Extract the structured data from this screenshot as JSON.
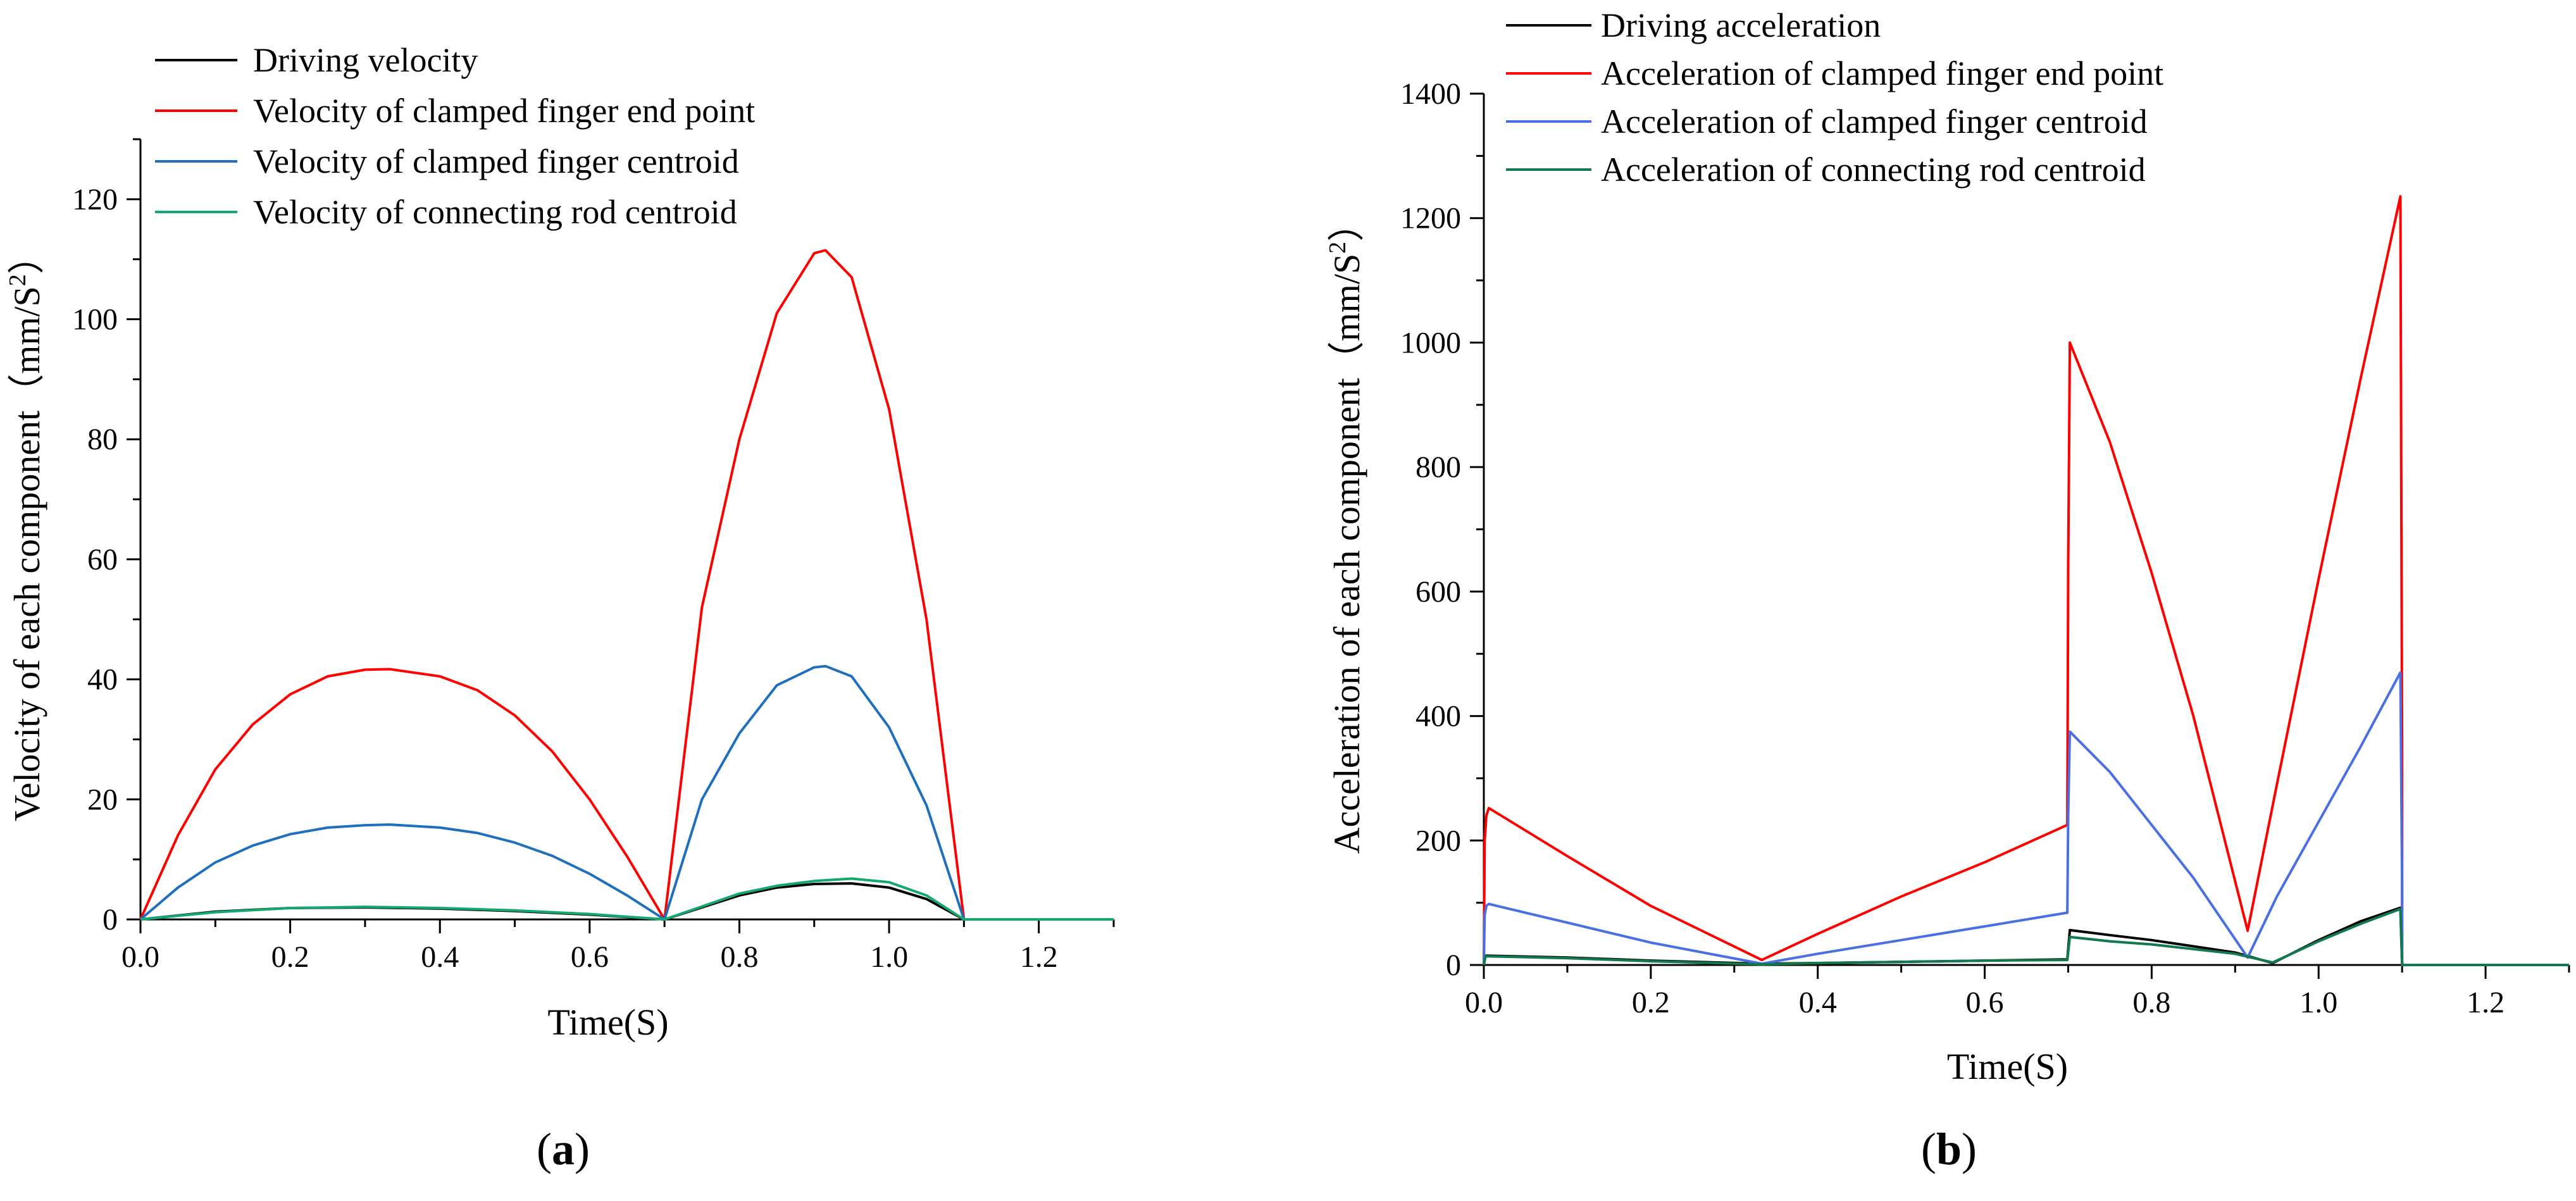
{
  "chart_data": [
    {
      "type": "line",
      "xlabel": "Time(S)",
      "ylabel_main": "Velocity of each component（mm/S",
      "ylabel_sup": "2",
      "ylabel_close": "）",
      "xlim": [
        0,
        1.3
      ],
      "ylim": [
        0,
        130
      ],
      "xticks": [
        "0.0",
        "0.2",
        "0.4",
        "0.6",
        "0.8",
        "1.0",
        "1.2"
      ],
      "xtick_values": [
        0,
        0.2,
        0.4,
        0.6,
        0.8,
        1.0,
        1.2
      ],
      "yticks": [
        "0",
        "20",
        "40",
        "60",
        "80",
        "100",
        "120"
      ],
      "ytick_values": [
        0,
        20,
        40,
        60,
        80,
        100,
        120
      ],
      "legend_position": "top-left",
      "caption_letter": "a",
      "series": [
        {
          "name": "Driving velocity",
          "color": "#000000",
          "x": [
            0,
            0.1,
            0.2,
            0.3,
            0.4,
            0.5,
            0.6,
            0.7,
            0.8,
            0.85,
            0.9,
            0.95,
            1.0,
            1.05,
            1.1,
            1.3
          ],
          "y": [
            0,
            1.3,
            1.9,
            2.0,
            1.8,
            1.4,
            0.8,
            0,
            4.0,
            5.3,
            5.9,
            6.0,
            5.3,
            3.4,
            0,
            0
          ]
        },
        {
          "name": "Velocity of clamped finger end point",
          "color": "#ff0000",
          "x": [
            0,
            0.05,
            0.1,
            0.15,
            0.2,
            0.25,
            0.3,
            0.333,
            0.4,
            0.45,
            0.5,
            0.55,
            0.6,
            0.65,
            0.7,
            0.75,
            0.8,
            0.85,
            0.9,
            0.915,
            0.95,
            1.0,
            1.05,
            1.1,
            1.3
          ],
          "y": [
            0,
            14,
            25,
            32.5,
            37.5,
            40.5,
            41.6,
            41.7,
            40.5,
            38.2,
            34,
            28,
            20,
            10.5,
            0,
            52,
            80,
            101,
            111,
            111.5,
            107,
            85,
            50,
            0,
            0
          ]
        },
        {
          "name": "Velocity of clamped finger centroid",
          "color": "#1f6fbf",
          "x": [
            0,
            0.05,
            0.1,
            0.15,
            0.2,
            0.25,
            0.3,
            0.333,
            0.4,
            0.45,
            0.5,
            0.55,
            0.6,
            0.65,
            0.7,
            0.75,
            0.8,
            0.85,
            0.9,
            0.915,
            0.95,
            1.0,
            1.05,
            1.1,
            1.3
          ],
          "y": [
            0,
            5.3,
            9.5,
            12.3,
            14.2,
            15.3,
            15.7,
            15.8,
            15.3,
            14.4,
            12.8,
            10.6,
            7.6,
            4,
            0,
            20,
            31,
            39,
            42,
            42.2,
            40.5,
            32,
            19,
            0,
            0
          ]
        },
        {
          "name": "Velocity of connecting rod centroid",
          "color": "#12a86e",
          "x": [
            0,
            0.1,
            0.2,
            0.3,
            0.4,
            0.5,
            0.6,
            0.7,
            0.8,
            0.85,
            0.9,
            0.95,
            1.0,
            1.05,
            1.1,
            1.3
          ],
          "y": [
            0,
            1.2,
            1.9,
            2.1,
            1.9,
            1.5,
            0.9,
            0,
            4.3,
            5.6,
            6.4,
            6.8,
            6.2,
            4.0,
            0,
            0
          ]
        }
      ]
    },
    {
      "type": "line",
      "xlabel": "Time(S)",
      "ylabel_main": "Acceleration of each component（mm/S",
      "ylabel_sup": "2",
      "ylabel_close": "）",
      "xlim": [
        0,
        1.3
      ],
      "ylim": [
        0,
        1400
      ],
      "xticks": [
        "0.0",
        "0.2",
        "0.4",
        "0.6",
        "0.8",
        "1.0",
        "1.2"
      ],
      "xtick_values": [
        0,
        0.2,
        0.4,
        0.6,
        0.8,
        1.0,
        1.2
      ],
      "yticks": [
        "0",
        "200",
        "400",
        "600",
        "800",
        "1000",
        "1200",
        "1400"
      ],
      "ytick_values": [
        0,
        200,
        400,
        600,
        800,
        1000,
        1200,
        1400
      ],
      "legend_position": "top-left",
      "caption_letter": "b",
      "series": [
        {
          "name": "Driving acceleration",
          "color": "#000000",
          "x": [
            0,
            0.002,
            0.1,
            0.2,
            0.333,
            0.4,
            0.5,
            0.6,
            0.699,
            0.702,
            0.75,
            0.8,
            0.9,
            0.945,
            1.0,
            1.05,
            1.098,
            1.1,
            1.3
          ],
          "y": [
            0,
            15,
            12,
            7,
            2,
            3,
            5,
            7,
            9,
            56,
            48,
            40,
            20,
            3,
            40,
            70,
            92,
            0,
            0
          ]
        },
        {
          "name": "Acceleration of clamped finger end point",
          "color": "#ff0000",
          "x": [
            0,
            0.001,
            0.003,
            0.006,
            0.1,
            0.2,
            0.333,
            0.4,
            0.5,
            0.6,
            0.699,
            0.7,
            0.702,
            0.75,
            0.8,
            0.85,
            0.915,
            0.95,
            1.0,
            1.05,
            1.098,
            1.1,
            1.1,
            1.3
          ],
          "y": [
            0,
            200,
            240,
            252,
            175,
            95,
            8,
            50,
            110,
            165,
            225,
            640,
            1000,
            840,
            630,
            400,
            55,
            290,
            620,
            940,
            1235,
            330,
            0,
            0
          ]
        },
        {
          "name": "Acceleration of clamped finger centroid",
          "color": "#4a6fe3",
          "x": [
            0,
            0.001,
            0.003,
            0.006,
            0.1,
            0.2,
            0.333,
            0.4,
            0.5,
            0.6,
            0.699,
            0.7,
            0.702,
            0.75,
            0.8,
            0.85,
            0.915,
            0.95,
            1.0,
            1.05,
            1.098,
            1.1,
            1.1,
            1.3
          ],
          "y": [
            0,
            80,
            95,
            98,
            68,
            36,
            2,
            18,
            40,
            62,
            84,
            240,
            375,
            310,
            225,
            140,
            12,
            110,
            230,
            350,
            470,
            120,
            0,
            0
          ]
        },
        {
          "name": "Acceleration of connecting rod centroid",
          "color": "#0f7a4e",
          "x": [
            0,
            0.002,
            0.1,
            0.2,
            0.333,
            0.4,
            0.5,
            0.6,
            0.699,
            0.702,
            0.75,
            0.8,
            0.9,
            0.945,
            1.0,
            1.05,
            1.098,
            1.1,
            1.3
          ],
          "y": [
            0,
            14,
            11,
            6,
            1,
            3,
            5,
            7,
            8,
            45,
            38,
            33,
            18,
            4,
            38,
            66,
            90,
            0,
            0
          ]
        }
      ]
    }
  ]
}
